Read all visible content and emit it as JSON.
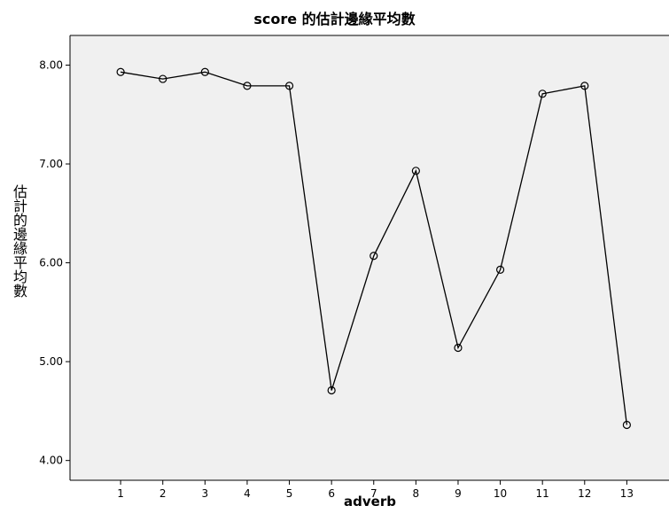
{
  "chart_data": {
    "type": "line",
    "title": "score 的估計邊緣平均數",
    "xlabel": "adverb",
    "ylabel": "估計的邊緣平均數",
    "categories": [
      "1",
      "2",
      "3",
      "4",
      "5",
      "6",
      "7",
      "8",
      "9",
      "10",
      "11",
      "12",
      "13"
    ],
    "values": [
      7.93,
      7.86,
      7.93,
      7.79,
      7.79,
      4.71,
      6.07,
      6.93,
      5.14,
      5.93,
      7.71,
      7.79,
      4.36
    ],
    "ylim": [
      3.8,
      8.3
    ],
    "yticks": [
      "4.00",
      "5.00",
      "6.00",
      "7.00",
      "8.00"
    ],
    "grid": false,
    "plot_background": "#f0f0f0",
    "line_color": "#000000"
  }
}
